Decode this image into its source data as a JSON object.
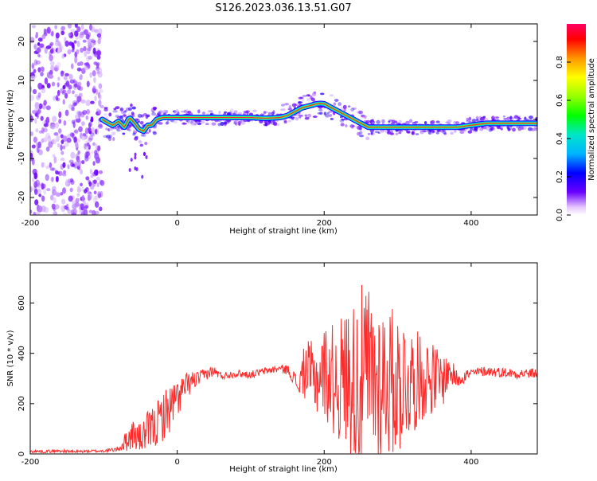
{
  "title": "S126.2023.036.13.51.G07",
  "chart_data": [
    {
      "type": "heatmap",
      "xlabel": "Height of straight line (km)",
      "ylabel": "Frequency (Hz)",
      "xlim": [
        -200,
        490
      ],
      "ylim": [
        -24.5,
        24.5
      ],
      "x_ticks": [
        -200,
        0,
        200,
        400
      ],
      "y_ticks": [
        -20,
        -10,
        0,
        10,
        20
      ],
      "grid": false,
      "noise_region_x": [
        -200,
        -102
      ],
      "ridge": {
        "x": [
          -102,
          -95,
          -88,
          -80,
          -72,
          -65,
          -58,
          -52,
          -46,
          -40,
          -35,
          -28,
          -20,
          -10,
          0,
          20,
          40,
          60,
          80,
          100,
          120,
          140,
          150,
          160,
          170,
          180,
          190,
          195,
          200,
          210,
          220,
          230,
          240,
          250,
          260,
          270,
          280,
          300,
          320,
          340,
          360,
          380,
          400,
          420,
          440,
          460,
          490
        ],
        "freq_hz": [
          0,
          -0.8,
          -1.5,
          -0.5,
          -2,
          0.5,
          -1,
          -2.5,
          -3,
          -1.5,
          -1.5,
          0,
          0.5,
          0.5,
          0.5,
          0.5,
          0.5,
          0.5,
          0.5,
          0.5,
          0.3,
          0.5,
          1,
          2,
          3,
          3.5,
          4,
          4.1,
          4,
          3,
          2,
          1,
          0,
          -1,
          -2,
          -2,
          -2,
          -2,
          -2,
          -2,
          -2,
          -2,
          -1.5,
          -1,
          -1,
          -1,
          -1
        ]
      },
      "colorbar": {
        "label": "Normalized spectral amplitude",
        "range": [
          0,
          1
        ],
        "ticks": [
          "0.0",
          "0.2",
          "0.4",
          "0.6",
          "0.8"
        ],
        "colors": [
          "#ffffff",
          "#6a00ff",
          "#0000ff",
          "#00b4ff",
          "#00e6c8",
          "#00ff00",
          "#96ff00",
          "#ffff00",
          "#ff9600",
          "#ff0000",
          "#ff0064"
        ]
      }
    },
    {
      "type": "line",
      "xlabel": "Height of straight line (km)",
      "ylabel": "SNR (10 * v/v)",
      "xlim": [
        -200,
        490
      ],
      "ylim": [
        0,
        760
      ],
      "x_ticks": [
        -200,
        0,
        200,
        400
      ],
      "y_ticks": [
        0,
        200,
        400,
        600
      ],
      "color": "#ff2a2a",
      "grid": false,
      "series": [
        {
          "x": [
            -200,
            -180,
            -160,
            -140,
            -120,
            -100,
            -90,
            -80,
            -70,
            -60,
            -50,
            -40,
            -30,
            -20,
            -10,
            0,
            10,
            20,
            30,
            40,
            50,
            60,
            80,
            100,
            120,
            140,
            150,
            160,
            165,
            170,
            175,
            180,
            190,
            200,
            210,
            220,
            230,
            240,
            250,
            260,
            270,
            280,
            290,
            300,
            310,
            320,
            330,
            340,
            350,
            360,
            370,
            380,
            400,
            420,
            440,
            460,
            490
          ],
          "y": [
            10,
            10,
            12,
            9,
            11,
            12,
            15,
            20,
            50,
            80,
            60,
            90,
            110,
            150,
            180,
            220,
            260,
            290,
            300,
            320,
            330,
            310,
            320,
            315,
            330,
            340,
            335,
            300,
            260,
            320,
            330,
            310,
            300,
            330,
            300,
            290,
            310,
            300,
            290,
            310,
            290,
            300,
            290,
            280,
            300,
            290,
            300,
            310,
            300,
            290,
            330,
            300,
            320,
            330,
            325,
            320,
            320
          ],
          "amplitude": [
            6,
            6,
            6,
            6,
            6,
            6,
            8,
            10,
            40,
            60,
            60,
            80,
            90,
            100,
            100,
            80,
            60,
            40,
            30,
            25,
            20,
            15,
            15,
            15,
            15,
            15,
            20,
            30,
            30,
            80,
            120,
            140,
            150,
            180,
            220,
            250,
            280,
            320,
            380,
            380,
            350,
            330,
            300,
            300,
            260,
            220,
            180,
            160,
            140,
            120,
            60,
            40,
            20,
            20,
            20,
            20,
            20
          ]
        }
      ]
    }
  ]
}
